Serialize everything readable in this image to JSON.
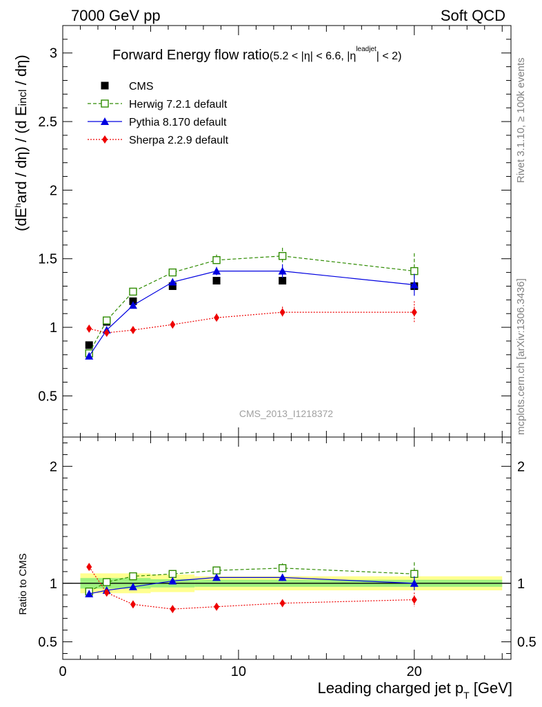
{
  "header": {
    "left": "7000 GeV pp",
    "right": "Soft QCD"
  },
  "side_labels": {
    "rivet": "Rivet 3.1.10, ≥ 100k events",
    "mcplots": "mcplots.cern.ch [arXiv:1306.3436]"
  },
  "watermark": "CMS_2013_I1218372",
  "chart_data": [
    {
      "type": "line",
      "title": "Forward Energy flow ratio",
      "title_suffix": "(5.2 < |η| < 6.6, |η",
      "title_sup": "leadjet",
      "title_end": "| < 2)",
      "ylabel": "(dE^hard / dη) / (d Eincl / dη)",
      "xlim": [
        0,
        25.5
      ],
      "ylim": [
        0.2,
        3.2
      ],
      "yticks": [
        0.5,
        1,
        1.5,
        2,
        2.5,
        3
      ],
      "yticklabels": [
        "0.5",
        "1",
        "1.5",
        "2",
        "2.5",
        "3"
      ],
      "legend_placement": "top-left",
      "x": [
        1.5,
        2.5,
        4.0,
        6.25,
        8.75,
        12.5,
        20.0
      ],
      "series": [
        {
          "name": "CMS",
          "color": "#000000",
          "style": "marker-square",
          "values": [
            0.87,
            1.04,
            1.19,
            1.3,
            1.34,
            1.34,
            1.3
          ],
          "errors": [
            0.01,
            0.01,
            0.01,
            0.01,
            0.01,
            0.01,
            0.02
          ]
        },
        {
          "name": "Herwig 7.2.1 default",
          "color": "#2e8b00",
          "style": "dashed-open-square",
          "values": [
            0.81,
            1.05,
            1.26,
            1.4,
            1.49,
            1.52,
            1.41
          ],
          "errors": [
            0.01,
            0.02,
            0.02,
            0.02,
            0.04,
            0.06,
            0.13
          ]
        },
        {
          "name": "Pythia 8.170 default",
          "color": "#0000e0",
          "style": "solid-triangle",
          "values": [
            0.79,
            0.98,
            1.16,
            1.33,
            1.41,
            1.41,
            1.31
          ],
          "errors": [
            0.01,
            0.01,
            0.01,
            0.02,
            0.03,
            0.05,
            0.08
          ]
        },
        {
          "name": "Sherpa 2.2.9 default",
          "color": "#ee0000",
          "style": "dotted-diamond",
          "values": [
            0.99,
            0.96,
            0.98,
            1.02,
            1.07,
            1.11,
            1.11
          ],
          "errors": [
            0.01,
            0.01,
            0.01,
            0.02,
            0.03,
            0.04,
            0.08
          ]
        }
      ]
    },
    {
      "type": "line",
      "title": "",
      "ylabel": "Ratio to CMS",
      "xlabel": "Leading charged jet p",
      "xlabel_sub": "T",
      "xlabel_end": " [GeV]",
      "xlim": [
        0,
        25.5
      ],
      "ylim": [
        0.35,
        2.25
      ],
      "xticks": [
        0,
        10,
        20
      ],
      "xticklabels": [
        "0",
        "10",
        "20"
      ],
      "yticks": [
        0.5,
        1,
        2
      ],
      "yticklabels": [
        "0.5",
        "1",
        "2"
      ],
      "bands": [
        {
          "x": [
            1.0,
            5.0,
            7.5,
            25.0
          ],
          "inner": [
            0.045,
            0.035,
            0.03,
            0.035
          ],
          "outer": [
            0.085,
            0.075,
            0.06,
            0.055
          ]
        }
      ],
      "x": [
        1.5,
        2.5,
        4.0,
        6.25,
        8.75,
        12.5,
        20.0
      ],
      "series": [
        {
          "name": "Herwig 7.2.1 default",
          "color": "#2e8b00",
          "values": [
            0.93,
            1.01,
            1.06,
            1.08,
            1.11,
            1.13,
            1.08
          ],
          "errors": [
            0.01,
            0.01,
            0.02,
            0.02,
            0.03,
            0.04,
            0.1
          ]
        },
        {
          "name": "Pythia 8.170 default",
          "color": "#0000e0",
          "values": [
            0.91,
            0.94,
            0.97,
            1.02,
            1.05,
            1.05,
            1.0
          ],
          "errors": [
            0.01,
            0.01,
            0.01,
            0.01,
            0.02,
            0.03,
            0.06
          ]
        },
        {
          "name": "Sherpa 2.2.9 default",
          "color": "#ee0000",
          "values": [
            1.14,
            0.92,
            0.82,
            0.78,
            0.8,
            0.83,
            0.86
          ],
          "errors": [
            0.01,
            0.01,
            0.01,
            0.02,
            0.02,
            0.03,
            0.06
          ]
        }
      ]
    }
  ]
}
